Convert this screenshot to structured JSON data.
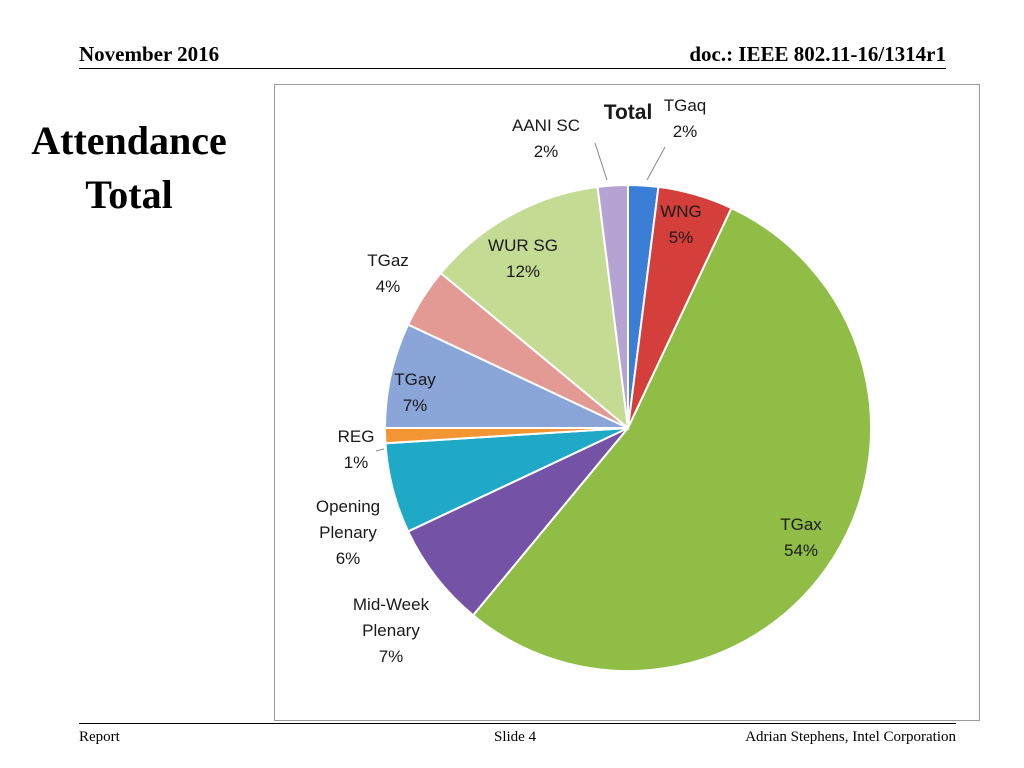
{
  "header": {
    "date": "November 2016",
    "doc": "doc.: IEEE 802.11-16/1314r1"
  },
  "slide_title": {
    "line1": "Attendance",
    "line2": "Total"
  },
  "footer": {
    "left": "Report",
    "center": "Slide 4",
    "right": "Adrian Stephens, Intel Corporation"
  },
  "chart_data": {
    "type": "pie",
    "title": "Total",
    "slices": [
      {
        "label": "TGaq",
        "value": 2,
        "color": "#3a7fd5"
      },
      {
        "label": "WNG",
        "value": 5,
        "color": "#d43e3b"
      },
      {
        "label": "TGax",
        "value": 54,
        "color": "#8fbd45"
      },
      {
        "label": "Mid-Week Plenary",
        "value": 7,
        "color": "#7452a5"
      },
      {
        "label": "Opening Plenary",
        "value": 6,
        "color": "#20a9c6"
      },
      {
        "label": "REG",
        "value": 1,
        "color": "#f29532"
      },
      {
        "label": "TGay",
        "value": 7,
        "color": "#8aa6d8"
      },
      {
        "label": "TGaz",
        "value": 4,
        "color": "#e39a95"
      },
      {
        "label": "WUR SG",
        "value": 12,
        "color": "#c3db93"
      },
      {
        "label": "AANI SC",
        "value": 2,
        "color": "#b5a3d4"
      }
    ]
  }
}
